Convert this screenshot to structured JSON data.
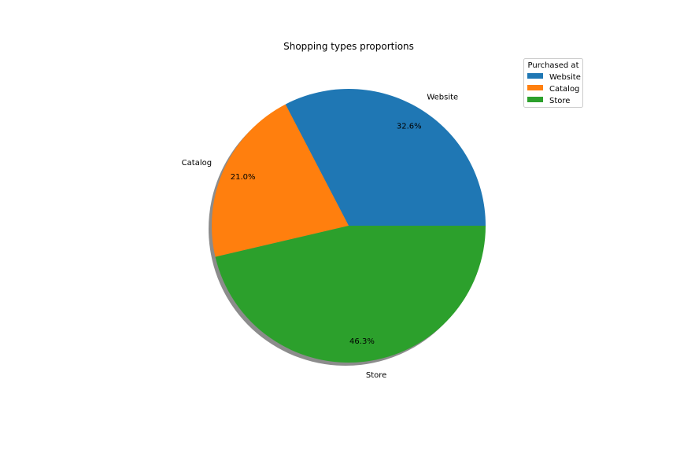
{
  "chart_data": {
    "type": "pie",
    "title": "Shopping types proportions",
    "categories": [
      "Website",
      "Catalog",
      "Store"
    ],
    "values": [
      32.6,
      21.0,
      46.3
    ],
    "percent_labels": [
      "32.6%",
      "21.0%",
      "46.3%"
    ],
    "colors": [
      "#1f77b4",
      "#ff7f0e",
      "#2ca02c"
    ],
    "start_angle_deg": 0,
    "direction": "counterclockwise",
    "shadow": true,
    "legend": {
      "title": "Purchased at",
      "placement": "top-right",
      "entries": [
        "Website",
        "Catalog",
        "Store"
      ]
    }
  }
}
